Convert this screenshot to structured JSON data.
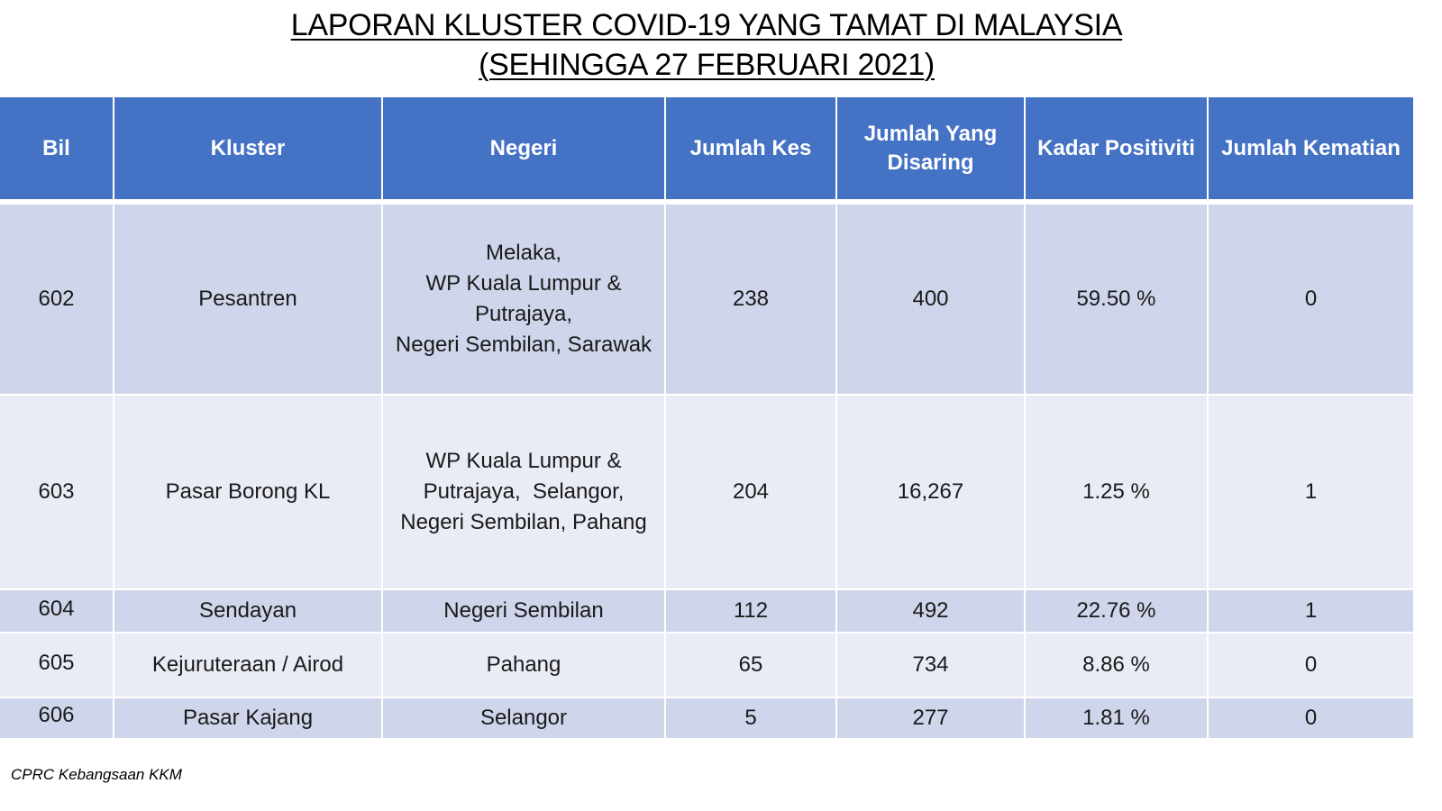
{
  "title": {
    "line1": "LAPORAN KLUSTER COVID-19 YANG TAMAT DI MALAYSIA",
    "line2": "(SEHINGGA 27 FEBRUARI 2021)"
  },
  "table": {
    "headers": {
      "bil": "Bil",
      "kluster": "Kluster",
      "negeri": "Negeri",
      "jumlah_kes": "Jumlah Kes",
      "jumlah_disaring_1": "Jumlah Yang",
      "jumlah_disaring_2": "Disaring",
      "kadar_positiviti": "Kadar Positiviti",
      "jumlah_kematian": "Jumlah Kematian"
    },
    "rows": [
      {
        "bil": "602",
        "kluster": "Pesantren",
        "negeri": [
          "Melaka,",
          "WP Kuala Lumpur &",
          "Putrajaya,",
          "Negeri Sembilan, Sarawak"
        ],
        "jumlah_kes": "238",
        "jumlah_disaring": "400",
        "kadar_positiviti": "59.50 %",
        "jumlah_kematian": "0"
      },
      {
        "bil": "603",
        "kluster": "Pasar Borong KL",
        "negeri": [
          "WP Kuala Lumpur &",
          "Putrajaya,  Selangor,",
          "Negeri Sembilan, Pahang"
        ],
        "jumlah_kes": "204",
        "jumlah_disaring": "16,267",
        "kadar_positiviti": "1.25 %",
        "jumlah_kematian": "1"
      },
      {
        "bil": "604",
        "kluster": "Sendayan",
        "negeri": [
          "Negeri Sembilan"
        ],
        "jumlah_kes": "112",
        "jumlah_disaring": "492",
        "kadar_positiviti": "22.76 %",
        "jumlah_kematian": "1"
      },
      {
        "bil": "605",
        "kluster": "Kejuruteraan / Airod",
        "negeri": [
          "Pahang"
        ],
        "jumlah_kes": "65",
        "jumlah_disaring": "734",
        "kadar_positiviti": "8.86 %",
        "jumlah_kematian": "0"
      },
      {
        "bil": "606",
        "kluster": "Pasar Kajang",
        "negeri": [
          "Selangor"
        ],
        "jumlah_kes": "5",
        "jumlah_disaring": "277",
        "kadar_positiviti": "1.81 %",
        "jumlah_kematian": "0"
      }
    ]
  },
  "source": "CPRC Kebangsaan KKM",
  "colors": {
    "header_bg": "#4472c4",
    "row_odd_bg": "#cfd5ea",
    "row_even_bg": "#e9ebf5"
  }
}
